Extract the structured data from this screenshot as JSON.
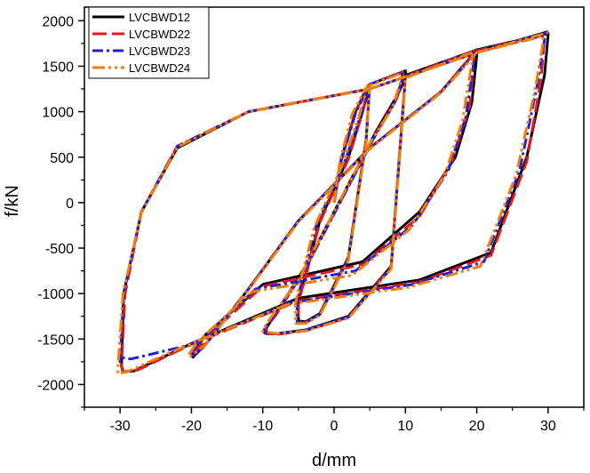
{
  "chart_data": {
    "type": "line",
    "xlabel": "d/mm",
    "ylabel": "f/kN",
    "xlim": [
      -35,
      35
    ],
    "ylim": [
      -2250,
      2150
    ],
    "x_ticks": [
      -30,
      -20,
      -10,
      0,
      10,
      20,
      30
    ],
    "y_ticks": [
      -2000,
      -1500,
      -1000,
      -500,
      0,
      500,
      1000,
      1500,
      2000
    ],
    "x_tick_labels": [
      "-30",
      "-20",
      "-10",
      "0",
      "10",
      "20",
      "30"
    ],
    "y_tick_labels": [
      "-2000",
      "-1500",
      "-1000",
      "-500",
      "0",
      "500",
      "1000",
      "1500",
      "2000"
    ],
    "grid": false,
    "legend_position": "top-left",
    "series": [
      {
        "name": "LVCBWD12",
        "color": "#000000",
        "dash": "solid",
        "width": 3,
        "x": [
          0,
          1,
          3,
          4.5,
          5,
          5,
          4,
          2,
          -2,
          -4,
          -5,
          -5,
          -4,
          -2,
          2,
          4.5,
          5,
          10,
          10,
          9,
          6,
          2,
          -4,
          -8,
          -9.5,
          -9.5,
          -8,
          -4,
          2,
          8,
          10,
          20,
          20,
          19.3,
          17,
          12,
          4,
          -10,
          -18,
          -19.8,
          -19.8,
          -18,
          -12,
          -5,
          5,
          15,
          20,
          30,
          30,
          29.5,
          27,
          22,
          12,
          -5,
          -20,
          -28,
          -29.6,
          -29.8,
          -29.5,
          -27,
          -22,
          -12,
          5,
          20,
          30
        ],
        "y": [
          0,
          480,
          1000,
          1250,
          1290,
          1280,
          1000,
          500,
          -200,
          -800,
          -1080,
          -1300,
          -1310,
          -1220,
          -600,
          700,
          1300,
          1450,
          1380,
          1200,
          800,
          200,
          -700,
          -1200,
          -1380,
          -1440,
          -1440,
          -1400,
          -1250,
          -700,
          1400,
          1680,
          1620,
          1100,
          500,
          -100,
          -650,
          -900,
          -1450,
          -1660,
          -1700,
          -1560,
          -950,
          -200,
          600,
          1220,
          1680,
          1860,
          1850,
          1400,
          500,
          -550,
          -850,
          -1050,
          -1550,
          -1850,
          -1860,
          -1800,
          -1000,
          -100,
          600,
          1000,
          1250,
          1650,
          1880
        ]
      },
      {
        "name": "LVCBWD22",
        "color": "#e31a1c",
        "dash": "16 6",
        "width": 3,
        "x": [
          0,
          1,
          3,
          4.5,
          4.8,
          4.8,
          4,
          2,
          -2,
          -4,
          -5,
          -5,
          -4,
          -2,
          2,
          4.5,
          5,
          9.6,
          9.6,
          8.8,
          6,
          2,
          -4,
          -8,
          -9.6,
          -9.6,
          -8,
          -4,
          2,
          8,
          10,
          19.6,
          19.6,
          19,
          16.5,
          12,
          4,
          -10,
          -17.5,
          -19.5,
          -20,
          -18,
          -12,
          -5,
          5,
          15,
          20,
          29.5,
          29.5,
          29,
          27,
          22,
          12,
          -5,
          -20,
          -27.5,
          -29.5,
          -29.8,
          -29.3,
          -27,
          -22,
          -12,
          5,
          20,
          30
        ],
        "y": [
          0,
          470,
          990,
          1240,
          1290,
          1270,
          990,
          480,
          -220,
          -820,
          -1090,
          -1310,
          -1320,
          -1230,
          -610,
          690,
          1300,
          1440,
          1360,
          1150,
          780,
          180,
          -720,
          -1220,
          -1380,
          -1440,
          -1450,
          -1410,
          -1260,
          -710,
          1390,
          1670,
          1580,
          1050,
          450,
          -150,
          -680,
          -920,
          -1450,
          -1650,
          -1620,
          -1550,
          -950,
          -200,
          600,
          1220,
          1670,
          1850,
          1820,
          1350,
          450,
          -580,
          -870,
          -1080,
          -1560,
          -1840,
          -1860,
          -1800,
          -1000,
          -100,
          620,
          1000,
          1250,
          1650,
          1870
        ]
      },
      {
        "name": "LVCBWD23",
        "color": "#1f1fd6",
        "dash": "12 4 3 4",
        "width": 3,
        "x": [
          0,
          1,
          3,
          4.5,
          4.8,
          4.8,
          3.8,
          1.5,
          -2.5,
          -4.5,
          -5.2,
          -5.2,
          -4,
          -2,
          2,
          4.5,
          5,
          9.5,
          9.5,
          8.5,
          5.5,
          1.5,
          -4.5,
          -8.5,
          -9.8,
          -9.8,
          -8,
          -4,
          2,
          8,
          10,
          19.6,
          19.6,
          18.5,
          16,
          11,
          3,
          -11,
          -18.5,
          -20,
          -20,
          -18,
          -12,
          -5,
          5,
          15,
          20,
          29.5,
          29.5,
          28.5,
          26,
          21,
          11,
          -6,
          -21,
          -28.5,
          -30,
          -30,
          -29.5,
          -27,
          -22,
          -12,
          5,
          20,
          30
        ],
        "y": [
          0,
          460,
          980,
          1230,
          1280,
          1260,
          970,
          450,
          -250,
          -850,
          -1100,
          -1320,
          -1320,
          -1230,
          -620,
          680,
          1300,
          1430,
          1340,
          1100,
          700,
          100,
          -800,
          -1250,
          -1390,
          -1430,
          -1440,
          -1400,
          -1260,
          -720,
          1380,
          1660,
          1560,
          950,
          350,
          -250,
          -750,
          -950,
          -1500,
          -1650,
          -1700,
          -1560,
          -950,
          -200,
          600,
          1220,
          1660,
          1840,
          1790,
          1300,
          350,
          -650,
          -900,
          -1100,
          -1580,
          -1720,
          -1700,
          -1750,
          -1000,
          -100,
          620,
          1000,
          1250,
          1650,
          1870
        ]
      },
      {
        "name": "LVCBWD24",
        "color": "#f07f0a",
        "dash": "14 4 3 4 3 4",
        "width": 3,
        "x": [
          0,
          0.8,
          2.5,
          4.2,
          4.6,
          4.6,
          3.5,
          1.2,
          -2.8,
          -4.8,
          -5.4,
          -5.4,
          -4,
          -2,
          2,
          4.5,
          5,
          9.3,
          9.3,
          8.2,
          5,
          1,
          -5,
          -9,
          -10,
          -10,
          -8,
          -4,
          2,
          8,
          10,
          19.3,
          19.3,
          18,
          15.5,
          10.5,
          2.5,
          -11.5,
          -19,
          -20.3,
          -20.3,
          -18,
          -12,
          -5,
          5,
          15,
          20,
          29.3,
          29.3,
          28.2,
          25.5,
          20.5,
          10.5,
          -6.5,
          -21.5,
          -29,
          -30.3,
          -30.3,
          -29.6,
          -27,
          -22,
          -12,
          5,
          20,
          30
        ],
        "y": [
          0,
          450,
          970,
          1220,
          1270,
          1250,
          950,
          420,
          -280,
          -880,
          -1110,
          -1330,
          -1330,
          -1240,
          -630,
          670,
          1290,
          1420,
          1320,
          1050,
          650,
          50,
          -850,
          -1280,
          -1400,
          -1420,
          -1440,
          -1410,
          -1270,
          -730,
          1370,
          1650,
          1540,
          900,
          300,
          -300,
          -800,
          -980,
          -1520,
          -1660,
          -1700,
          -1560,
          -960,
          -210,
          590,
          1210,
          1650,
          1830,
          1760,
          1250,
          300,
          -700,
          -930,
          -1120,
          -1600,
          -1860,
          -1880,
          -1820,
          -1000,
          -110,
          610,
          1000,
          1250,
          1650,
          1870
        ]
      }
    ]
  }
}
